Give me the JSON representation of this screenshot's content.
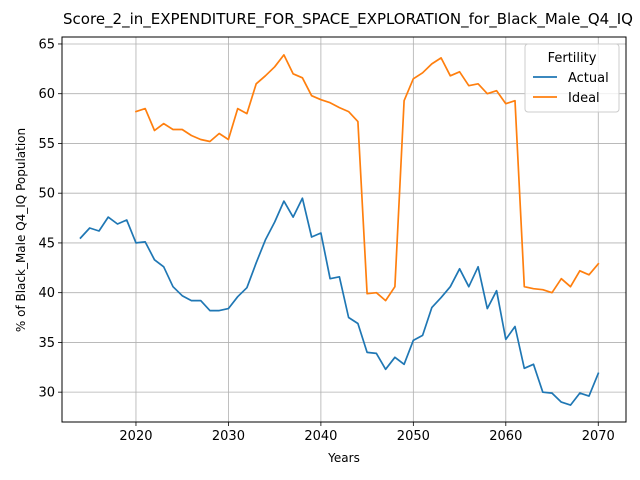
{
  "chart_data": {
    "type": "line",
    "title": "Score_2_in_EXPENDITURE_FOR_SPACE_EXPLORATION_for_Black_Male_Q4_IQ",
    "xlabel": "Years",
    "ylabel": "% of Black_Male Q4_IQ Population",
    "xlim": [
      2012,
      2073
    ],
    "ylim": [
      27,
      65.7
    ],
    "xticks": [
      2020,
      2030,
      2040,
      2050,
      2060,
      2070
    ],
    "yticks": [
      30,
      35,
      40,
      45,
      50,
      55,
      60,
      65
    ],
    "grid": true,
    "legend": {
      "title": "Fertility",
      "placement": "top-right"
    },
    "series": [
      {
        "name": "Actual",
        "color": "#1f77b4",
        "x": [
          2014,
          2015,
          2016,
          2017,
          2018,
          2019,
          2020,
          2021,
          2022,
          2023,
          2024,
          2025,
          2026,
          2027,
          2028,
          2029,
          2030,
          2031,
          2032,
          2033,
          2034,
          2035,
          2036,
          2037,
          2038,
          2039,
          2040,
          2041,
          2042,
          2043,
          2044,
          2045,
          2046,
          2047,
          2048,
          2049,
          2050,
          2051,
          2052,
          2053,
          2054,
          2055,
          2056,
          2057,
          2058,
          2059,
          2060,
          2061,
          2062,
          2063,
          2064,
          2065,
          2066,
          2067,
          2068,
          2069,
          2070
        ],
        "values": [
          45.5,
          46.5,
          46.2,
          47.6,
          46.9,
          47.3,
          45.0,
          45.1,
          43.3,
          42.6,
          40.6,
          39.7,
          39.2,
          39.2,
          38.2,
          38.2,
          38.4,
          39.6,
          40.5,
          43.0,
          45.3,
          47.1,
          49.2,
          47.6,
          49.5,
          45.6,
          46.0,
          41.4,
          41.6,
          37.5,
          36.9,
          34.0,
          33.9,
          32.3,
          33.5,
          32.8,
          35.2,
          35.7,
          38.5,
          39.5,
          40.6,
          42.4,
          40.6,
          42.6,
          38.4,
          40.2,
          35.3,
          36.6,
          32.4,
          32.8,
          30.0,
          29.9,
          29.0,
          28.7,
          29.9,
          29.6,
          31.9
        ]
      },
      {
        "name": "Ideal",
        "color": "#ff7f0e",
        "x": [
          2020,
          2021,
          2022,
          2023,
          2024,
          2025,
          2026,
          2027,
          2028,
          2029,
          2030,
          2031,
          2032,
          2033,
          2034,
          2035,
          2036,
          2037,
          2038,
          2039,
          2040,
          2041,
          2042,
          2043,
          2044,
          2045,
          2046,
          2047,
          2048,
          2049,
          2050,
          2051,
          2052,
          2053,
          2054,
          2055,
          2056,
          2057,
          2058,
          2059,
          2060,
          2061,
          2062,
          2063,
          2064,
          2065,
          2066,
          2067,
          2068,
          2069,
          2070
        ],
        "values": [
          58.2,
          58.5,
          56.3,
          57.0,
          56.4,
          56.4,
          55.8,
          55.4,
          55.2,
          56.0,
          55.4,
          58.5,
          58.0,
          61.0,
          61.8,
          62.7,
          63.9,
          62.0,
          61.6,
          59.8,
          59.4,
          59.1,
          58.6,
          58.2,
          57.2,
          39.9,
          40.0,
          39.2,
          40.6,
          59.3,
          61.5,
          62.1,
          63.0,
          63.6,
          61.8,
          62.2,
          60.8,
          61.0,
          60.0,
          60.3,
          59.0,
          59.3,
          40.6,
          40.4,
          40.3,
          40.0,
          41.4,
          40.6,
          42.2,
          41.8,
          42.9
        ]
      }
    ]
  }
}
